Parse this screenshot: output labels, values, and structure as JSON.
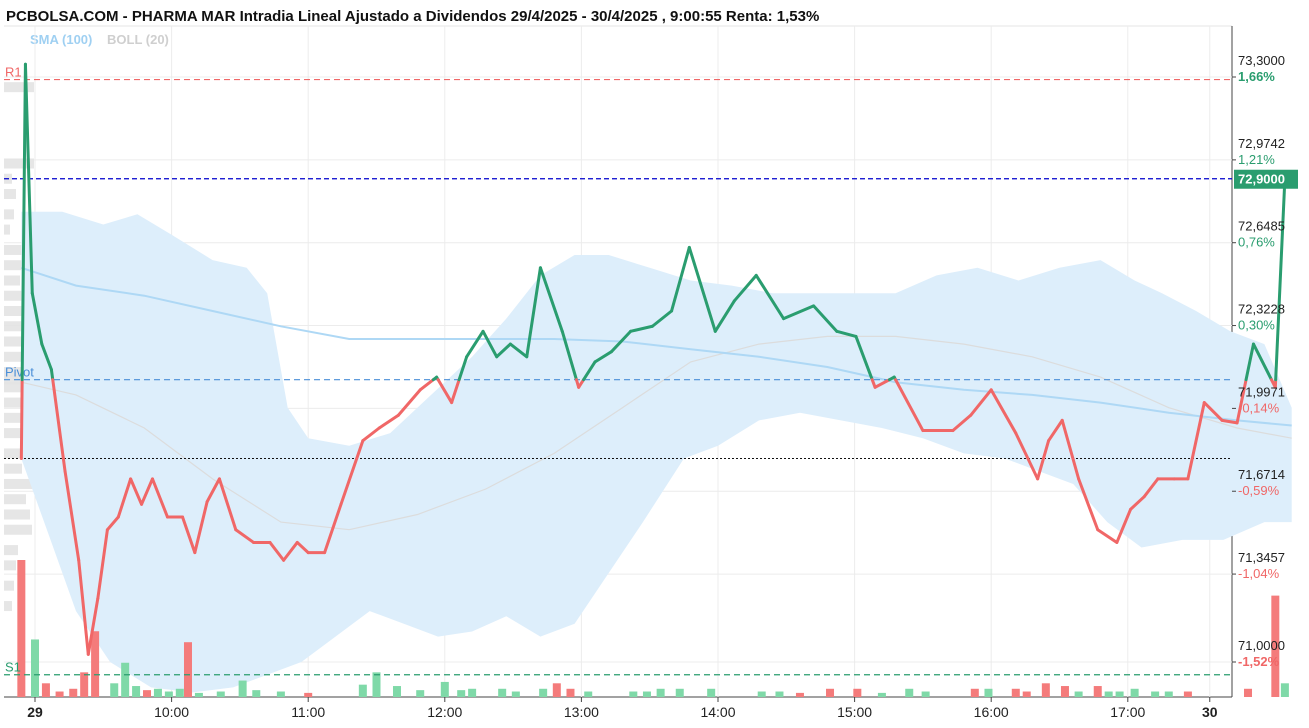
{
  "title": "PCBOLSA.COM - PHARMA MAR Intradia Lineal Ajustado a Dividendos 29/4/2025 - 30/4/2025 , 9:00:55 Renta: 1,53%",
  "legend": [
    {
      "label": "SMA (100)",
      "color": "#9fd0f2"
    },
    {
      "label": "BOLL (20)",
      "color": "#cfcfcf"
    }
  ],
  "current_price": "72,9000",
  "colors": {
    "up": "#2a9d6f",
    "down": "#f06767",
    "band": "#ddeefb",
    "sma": "#aed8f5",
    "boll_mid": "#dcdcdc",
    "r1": "#f06767",
    "pivot": "#4a8fd8",
    "s1": "#2a9d6f",
    "close_line": "#0000cc",
    "prev_close": "#111111"
  },
  "chart_data": {
    "type": "line",
    "title": "PCBOLSA.COM - PHARMA MAR Intradia Lineal Ajustado a Dividendos 29/4/2025 - 30/4/2025 , 9:00:55 Renta: 1,53%",
    "xlabel": "",
    "ylabel": "",
    "ylim": [
      70.9,
      73.37
    ],
    "x_ticks": [
      {
        "label": "29",
        "t": 0,
        "bold": true
      },
      {
        "label": "10:00",
        "t": 1
      },
      {
        "label": "11:00",
        "t": 2
      },
      {
        "label": "12:00",
        "t": 3
      },
      {
        "label": "13:00",
        "t": 4
      },
      {
        "label": "14:00",
        "t": 5
      },
      {
        "label": "15:00",
        "t": 6
      },
      {
        "label": "16:00",
        "t": 7
      },
      {
        "label": "17:00",
        "t": 8
      },
      {
        "label": "30",
        "t": 8.6,
        "bold": true
      }
    ],
    "y_ticks": [
      {
        "value": 73.3,
        "label": "73,3000",
        "pct": "1,66%",
        "pct_color": "up",
        "pct_bold": true
      },
      {
        "value": 72.9742,
        "label": "72,9742",
        "pct": "1,21%",
        "pct_color": "up"
      },
      {
        "value": 72.6485,
        "label": "72,6485",
        "pct": "0,76%",
        "pct_color": "up"
      },
      {
        "value": 72.3228,
        "label": "72,3228",
        "pct": "0,30%",
        "pct_color": "up"
      },
      {
        "value": 71.9971,
        "label": "71,9971",
        "pct": "-0,14%",
        "pct_color": "down"
      },
      {
        "value": 71.6714,
        "label": "71,6714",
        "pct": "-0,59%",
        "pct_color": "down"
      },
      {
        "value": 71.3457,
        "label": "71,3457",
        "pct": "-1,04%",
        "pct_color": "down"
      },
      {
        "value": 71.0,
        "label": "71,0000",
        "pct": "-1,52%",
        "pct_color": "down",
        "pct_bold": true
      }
    ],
    "levels": [
      {
        "name": "R1",
        "value": 73.29,
        "color": "r1"
      },
      {
        "name": "Pivot",
        "value": 72.11,
        "color": "pivot"
      },
      {
        "name": "S1",
        "value": 70.95,
        "color": "s1"
      }
    ],
    "prev_close": 71.8,
    "last_price": 72.9,
    "series": [
      {
        "name": "PHARMA MAR",
        "points": [
          [
            -0.1,
            71.8
          ],
          [
            -0.07,
            73.35
          ],
          [
            -0.02,
            72.45
          ],
          [
            0.05,
            72.25
          ],
          [
            0.12,
            72.15
          ],
          [
            0.22,
            71.75
          ],
          [
            0.32,
            71.4
          ],
          [
            0.39,
            71.03
          ],
          [
            0.46,
            71.25
          ],
          [
            0.53,
            71.52
          ],
          [
            0.61,
            71.57
          ],
          [
            0.7,
            71.72
          ],
          [
            0.78,
            71.62
          ],
          [
            0.86,
            71.72
          ],
          [
            0.97,
            71.57
          ],
          [
            1.08,
            71.57
          ],
          [
            1.17,
            71.43
          ],
          [
            1.26,
            71.63
          ],
          [
            1.35,
            71.72
          ],
          [
            1.47,
            71.52
          ],
          [
            1.6,
            71.47
          ],
          [
            1.72,
            71.47
          ],
          [
            1.82,
            71.4
          ],
          [
            1.92,
            71.47
          ],
          [
            2.0,
            71.43
          ],
          [
            2.12,
            71.43
          ],
          [
            2.24,
            71.62
          ],
          [
            2.4,
            71.87
          ],
          [
            2.52,
            71.92
          ],
          [
            2.66,
            71.97
          ],
          [
            2.82,
            72.07
          ],
          [
            2.94,
            72.12
          ],
          [
            3.05,
            72.02
          ],
          [
            3.16,
            72.2
          ],
          [
            3.28,
            72.3
          ],
          [
            3.38,
            72.2
          ],
          [
            3.48,
            72.25
          ],
          [
            3.6,
            72.2
          ],
          [
            3.7,
            72.55
          ],
          [
            3.86,
            72.3
          ],
          [
            3.98,
            72.08
          ],
          [
            4.1,
            72.18
          ],
          [
            4.22,
            72.22
          ],
          [
            4.36,
            72.3
          ],
          [
            4.52,
            72.32
          ],
          [
            4.66,
            72.38
          ],
          [
            4.79,
            72.63
          ],
          [
            4.98,
            72.3
          ],
          [
            5.12,
            72.42
          ],
          [
            5.28,
            72.52
          ],
          [
            5.48,
            72.35
          ],
          [
            5.7,
            72.4
          ],
          [
            5.87,
            72.3
          ],
          [
            6.01,
            72.28
          ],
          [
            6.15,
            72.08
          ],
          [
            6.29,
            72.12
          ],
          [
            6.5,
            71.91
          ],
          [
            6.72,
            71.91
          ],
          [
            6.85,
            71.97
          ],
          [
            7.0,
            72.07
          ],
          [
            7.18,
            71.9
          ],
          [
            7.34,
            71.72
          ],
          [
            7.42,
            71.87
          ],
          [
            7.52,
            71.95
          ],
          [
            7.64,
            71.72
          ],
          [
            7.78,
            71.52
          ],
          [
            7.92,
            71.47
          ],
          [
            8.02,
            71.6
          ],
          [
            8.12,
            71.65
          ],
          [
            8.22,
            71.72
          ],
          [
            8.34,
            71.72
          ],
          [
            8.44,
            71.72
          ],
          [
            8.56,
            72.02
          ],
          [
            8.69,
            71.95
          ],
          [
            8.8,
            71.94
          ],
          [
            8.92,
            72.25
          ],
          [
            9.08,
            72.08
          ],
          [
            9.15,
            72.9
          ]
        ]
      }
    ],
    "sma": [
      [
        -0.1,
        72.55
      ],
      [
        0.3,
        72.48
      ],
      [
        0.8,
        72.44
      ],
      [
        1.3,
        72.38
      ],
      [
        1.8,
        72.32
      ],
      [
        2.3,
        72.27
      ],
      [
        2.8,
        72.27
      ],
      [
        3.3,
        72.27
      ],
      [
        3.8,
        72.27
      ],
      [
        4.3,
        72.26
      ],
      [
        4.8,
        72.23
      ],
      [
        5.3,
        72.2
      ],
      [
        5.8,
        72.16
      ],
      [
        6.3,
        72.1
      ],
      [
        6.8,
        72.07
      ],
      [
        7.3,
        72.05
      ],
      [
        7.8,
        72.02
      ],
      [
        8.3,
        71.98
      ],
      [
        8.8,
        71.95
      ],
      [
        9.2,
        71.93
      ]
    ],
    "bollinger": {
      "upper": [
        [
          -0.1,
          72.77
        ],
        [
          0.2,
          72.77
        ],
        [
          0.5,
          72.72
        ],
        [
          0.75,
          72.76
        ],
        [
          1.0,
          72.68
        ],
        [
          1.3,
          72.58
        ],
        [
          1.55,
          72.55
        ],
        [
          1.7,
          72.45
        ],
        [
          1.85,
          72.0
        ],
        [
          2.0,
          71.88
        ],
        [
          2.3,
          71.85
        ],
        [
          2.6,
          71.9
        ],
        [
          2.9,
          72.05
        ],
        [
          3.2,
          72.2
        ],
        [
          3.45,
          72.35
        ],
        [
          3.7,
          72.52
        ],
        [
          3.95,
          72.6
        ],
        [
          4.2,
          72.6
        ],
        [
          4.5,
          72.55
        ],
        [
          4.8,
          72.5
        ],
        [
          5.1,
          72.48
        ],
        [
          5.4,
          72.45
        ],
        [
          5.7,
          72.45
        ],
        [
          6.0,
          72.45
        ],
        [
          6.3,
          72.45
        ],
        [
          6.6,
          72.52
        ],
        [
          6.9,
          72.55
        ],
        [
          7.2,
          72.5
        ],
        [
          7.5,
          72.55
        ],
        [
          7.8,
          72.58
        ],
        [
          8.05,
          72.5
        ],
        [
          8.25,
          72.45
        ],
        [
          8.5,
          72.38
        ],
        [
          8.75,
          72.3
        ],
        [
          9.0,
          72.25
        ],
        [
          9.2,
          72.0
        ]
      ],
      "lower": [
        [
          9.2,
          71.55
        ],
        [
          9.0,
          71.55
        ],
        [
          8.7,
          71.48
        ],
        [
          8.4,
          71.48
        ],
        [
          8.1,
          71.45
        ],
        [
          7.85,
          71.55
        ],
        [
          7.6,
          71.7
        ],
        [
          7.35,
          71.75
        ],
        [
          7.1,
          71.8
        ],
        [
          6.8,
          71.82
        ],
        [
          6.5,
          71.88
        ],
        [
          6.2,
          71.92
        ],
        [
          5.9,
          71.95
        ],
        [
          5.6,
          71.98
        ],
        [
          5.3,
          71.95
        ],
        [
          5.0,
          71.85
        ],
        [
          4.75,
          71.8
        ],
        [
          4.45,
          71.55
        ],
        [
          4.2,
          71.35
        ],
        [
          3.95,
          71.15
        ],
        [
          3.7,
          71.1
        ],
        [
          3.45,
          71.18
        ],
        [
          3.2,
          71.12
        ],
        [
          2.95,
          71.1
        ],
        [
          2.7,
          71.15
        ],
        [
          2.45,
          71.2
        ],
        [
          2.2,
          71.1
        ],
        [
          1.95,
          71.0
        ],
        [
          1.7,
          70.95
        ],
        [
          1.45,
          70.9
        ],
        [
          1.15,
          70.88
        ],
        [
          0.85,
          70.9
        ],
        [
          0.55,
          71.0
        ],
        [
          0.3,
          71.2
        ],
        [
          0.1,
          71.5
        ],
        [
          -0.1,
          71.8
        ]
      ],
      "middle": [
        [
          -0.1,
          72.1
        ],
        [
          0.3,
          72.05
        ],
        [
          0.8,
          71.92
        ],
        [
          1.3,
          71.72
        ],
        [
          1.8,
          71.55
        ],
        [
          2.3,
          71.52
        ],
        [
          2.8,
          71.58
        ],
        [
          3.3,
          71.68
        ],
        [
          3.8,
          71.82
        ],
        [
          4.3,
          72.0
        ],
        [
          4.8,
          72.18
        ],
        [
          5.3,
          72.25
        ],
        [
          5.8,
          72.28
        ],
        [
          6.3,
          72.28
        ],
        [
          6.8,
          72.25
        ],
        [
          7.3,
          72.2
        ],
        [
          7.8,
          72.12
        ],
        [
          8.3,
          72.0
        ],
        [
          8.8,
          71.92
        ],
        [
          9.2,
          71.88
        ]
      ]
    },
    "volume": {
      "scale_max": 100,
      "bars": [
        [
          -0.1,
          100,
          "down"
        ],
        [
          0.0,
          42,
          "up"
        ],
        [
          0.08,
          10,
          "down"
        ],
        [
          0.18,
          4,
          "down"
        ],
        [
          0.28,
          6,
          "down"
        ],
        [
          0.36,
          18,
          "down"
        ],
        [
          0.44,
          48,
          "down"
        ],
        [
          0.58,
          10,
          "up"
        ],
        [
          0.66,
          25,
          "up"
        ],
        [
          0.74,
          8,
          "up"
        ],
        [
          0.82,
          5,
          "down"
        ],
        [
          0.9,
          6,
          "up"
        ],
        [
          0.98,
          4,
          "up"
        ],
        [
          1.06,
          6,
          "up"
        ],
        [
          1.12,
          40,
          "down"
        ],
        [
          1.2,
          3,
          "up"
        ],
        [
          1.36,
          4,
          "up"
        ],
        [
          1.52,
          12,
          "up"
        ],
        [
          1.62,
          5,
          "up"
        ],
        [
          1.8,
          4,
          "up"
        ],
        [
          2.0,
          3,
          "down"
        ],
        [
          2.4,
          9,
          "up"
        ],
        [
          2.5,
          18,
          "up"
        ],
        [
          2.65,
          8,
          "up"
        ],
        [
          2.82,
          5,
          "up"
        ],
        [
          3.0,
          11,
          "up"
        ],
        [
          3.12,
          5,
          "up"
        ],
        [
          3.2,
          6,
          "up"
        ],
        [
          3.42,
          6,
          "up"
        ],
        [
          3.52,
          4,
          "up"
        ],
        [
          3.72,
          6,
          "up"
        ],
        [
          3.82,
          10,
          "down"
        ],
        [
          3.92,
          6,
          "down"
        ],
        [
          4.05,
          4,
          "up"
        ],
        [
          4.38,
          4,
          "up"
        ],
        [
          4.48,
          4,
          "up"
        ],
        [
          4.58,
          6,
          "up"
        ],
        [
          4.72,
          6,
          "up"
        ],
        [
          4.95,
          6,
          "up"
        ],
        [
          5.32,
          4,
          "up"
        ],
        [
          5.45,
          4,
          "up"
        ],
        [
          5.6,
          3,
          "down"
        ],
        [
          5.82,
          6,
          "down"
        ],
        [
          6.02,
          6,
          "down"
        ],
        [
          6.2,
          3,
          "up"
        ],
        [
          6.4,
          6,
          "up"
        ],
        [
          6.52,
          4,
          "up"
        ],
        [
          6.88,
          6,
          "down"
        ],
        [
          6.98,
          6,
          "up"
        ],
        [
          7.18,
          6,
          "down"
        ],
        [
          7.26,
          4,
          "down"
        ],
        [
          7.4,
          10,
          "down"
        ],
        [
          7.54,
          8,
          "down"
        ],
        [
          7.64,
          4,
          "up"
        ],
        [
          7.78,
          8,
          "down"
        ],
        [
          7.86,
          4,
          "up"
        ],
        [
          7.94,
          4,
          "up"
        ],
        [
          8.05,
          6,
          "up"
        ],
        [
          8.2,
          4,
          "up"
        ],
        [
          8.3,
          4,
          "up"
        ],
        [
          8.44,
          4,
          "down"
        ],
        [
          8.88,
          6,
          "down"
        ],
        [
          9.08,
          74,
          "down"
        ],
        [
          9.15,
          10,
          "up"
        ]
      ]
    },
    "order_book_bars": [
      [
        72.96,
        30
      ],
      [
        72.9,
        8
      ],
      [
        72.84,
        12
      ],
      [
        72.76,
        10
      ],
      [
        72.7,
        6
      ],
      [
        72.62,
        18
      ],
      [
        72.56,
        22
      ],
      [
        72.5,
        16
      ],
      [
        72.44,
        26
      ],
      [
        72.38,
        30
      ],
      [
        72.32,
        18
      ],
      [
        72.26,
        24
      ],
      [
        72.2,
        40
      ],
      [
        72.14,
        44
      ],
      [
        72.11,
        60
      ],
      [
        72.08,
        50
      ],
      [
        72.02,
        38
      ],
      [
        71.96,
        30
      ],
      [
        71.9,
        28
      ],
      [
        71.82,
        26
      ],
      [
        71.76,
        18
      ],
      [
        71.7,
        36
      ],
      [
        71.64,
        22
      ],
      [
        71.58,
        26
      ],
      [
        71.52,
        28
      ],
      [
        71.44,
        14
      ],
      [
        71.38,
        12
      ],
      [
        71.3,
        10
      ],
      [
        71.22,
        8
      ],
      [
        73.26,
        30
      ]
    ]
  }
}
